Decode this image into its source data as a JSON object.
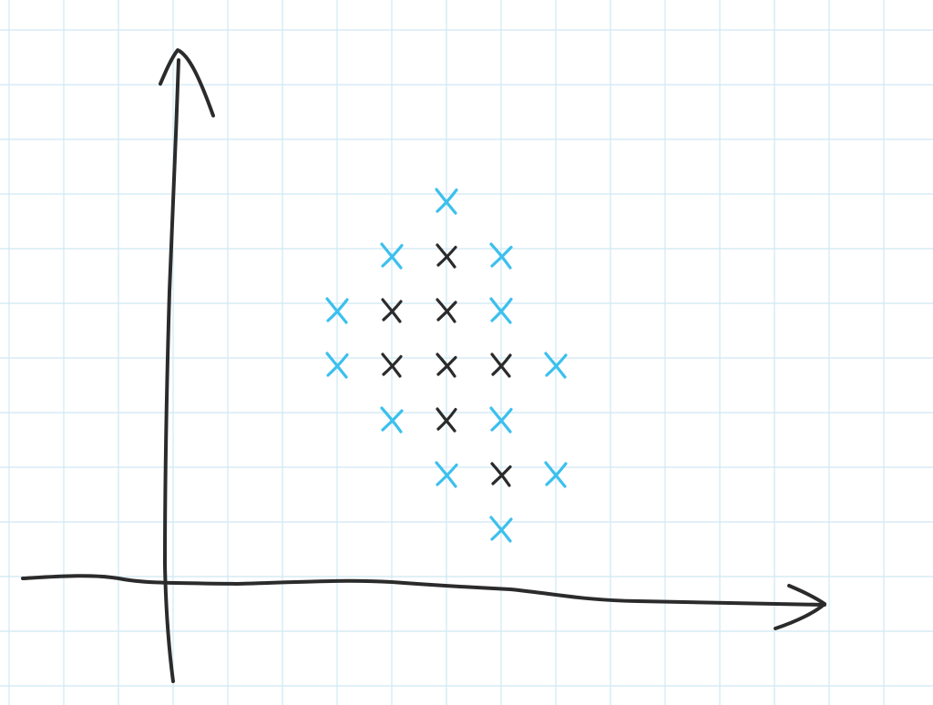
{
  "colors": {
    "paper": "#ffffff",
    "grid": "#cfe8f4",
    "axis_ink": "#2b2b2b",
    "interior_marks": "#2b2b2b",
    "boundary_marks": "#3cc0ee"
  },
  "grid": {
    "visible": true
  },
  "axes": {
    "x_arrow": true,
    "y_arrow": true
  },
  "lattice_points": [
    {
      "x": 5,
      "y": 7,
      "kind": "boundary"
    },
    {
      "x": 4,
      "y": 6,
      "kind": "boundary"
    },
    {
      "x": 5,
      "y": 6,
      "kind": "interior"
    },
    {
      "x": 6,
      "y": 6,
      "kind": "boundary"
    },
    {
      "x": 3,
      "y": 5,
      "kind": "boundary"
    },
    {
      "x": 4,
      "y": 5,
      "kind": "interior"
    },
    {
      "x": 5,
      "y": 5,
      "kind": "interior"
    },
    {
      "x": 6,
      "y": 5,
      "kind": "boundary"
    },
    {
      "x": 3,
      "y": 4,
      "kind": "boundary"
    },
    {
      "x": 4,
      "y": 4,
      "kind": "interior"
    },
    {
      "x": 5,
      "y": 4,
      "kind": "interior"
    },
    {
      "x": 6,
      "y": 4,
      "kind": "interior"
    },
    {
      "x": 7,
      "y": 4,
      "kind": "boundary"
    },
    {
      "x": 4,
      "y": 3,
      "kind": "boundary"
    },
    {
      "x": 5,
      "y": 3,
      "kind": "interior"
    },
    {
      "x": 6,
      "y": 3,
      "kind": "boundary"
    },
    {
      "x": 5,
      "y": 2,
      "kind": "boundary"
    },
    {
      "x": 6,
      "y": 2,
      "kind": "interior"
    },
    {
      "x": 7,
      "y": 2,
      "kind": "boundary"
    },
    {
      "x": 6,
      "y": 1,
      "kind": "boundary"
    }
  ]
}
